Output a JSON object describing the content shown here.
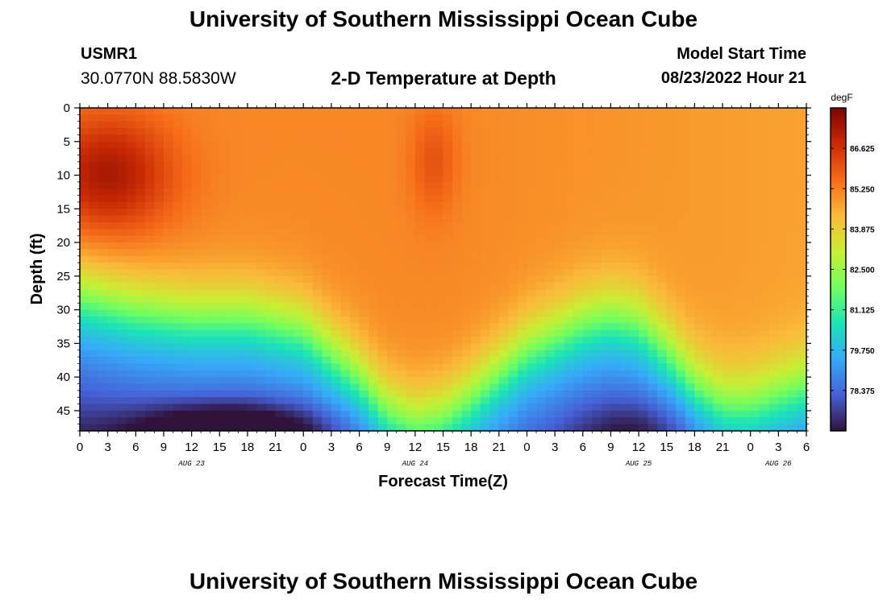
{
  "page": {
    "title_top": "University of Southern Mississippi Ocean Cube",
    "title_bottom": "University of Southern Mississippi Ocean Cube",
    "station_id": "USMR1",
    "station_coords": "30.0770N  88.5830W",
    "chart_title": "2-D Temperature at Depth",
    "model_label": "Model Start Time",
    "model_time": "08/23/2022 Hour 21"
  },
  "colors": {
    "colormap": [
      "#30123b",
      "#4661d6",
      "#36aaf9",
      "#1ae4b6",
      "#72fe5e",
      "#c8ef34",
      "#faba39",
      "#f66b19",
      "#ca2a04",
      "#7a0403"
    ]
  },
  "chart_data": {
    "type": "heatmap",
    "title": "2-D Temperature at Depth",
    "xlabel": "Forecast Time(Z)",
    "ylabel": "Depth (ft)",
    "x_start_hour": 0,
    "x_end_hour": 78,
    "x_tick_step_hours": 3,
    "x_tick_labels": [
      "0",
      "3",
      "6",
      "9",
      "12",
      "15",
      "18",
      "21",
      "0",
      "3",
      "6",
      "9",
      "12",
      "15",
      "18",
      "21",
      "0",
      "3",
      "6",
      "9",
      "12",
      "15",
      "18",
      "21",
      "0",
      "3",
      "6"
    ],
    "date_labels": [
      {
        "label": "AUG 23",
        "hour": 12
      },
      {
        "label": "AUG 24",
        "hour": 36
      },
      {
        "label": "AUG 25",
        "hour": 60
      },
      {
        "label": "AUG 26",
        "hour": 75
      }
    ],
    "ylim": [
      0,
      48
    ],
    "y_ticks": [
      0,
      5,
      10,
      15,
      20,
      25,
      30,
      35,
      40,
      45
    ],
    "colorbar": {
      "unit": "degF",
      "min": 77.0,
      "max": 88.0,
      "tick_values": [
        86.625,
        85.25,
        83.875,
        82.5,
        81.125,
        79.75,
        78.375
      ],
      "tick_labels": [
        "86.625",
        "85.250",
        "83.875",
        "82.500",
        "81.125",
        "79.750",
        "78.375"
      ]
    },
    "transition_depth_ft": [
      {
        "hour": 0,
        "depth": 27
      },
      {
        "hour": 6,
        "depth": 29
      },
      {
        "hour": 12,
        "depth": 30
      },
      {
        "hour": 18,
        "depth": 30
      },
      {
        "hour": 24,
        "depth": 32
      },
      {
        "hour": 30,
        "depth": 39
      },
      {
        "hour": 33,
        "depth": 44
      },
      {
        "hour": 36,
        "depth": 46
      },
      {
        "hour": 39,
        "depth": 45
      },
      {
        "hour": 42,
        "depth": 42
      },
      {
        "hour": 48,
        "depth": 35
      },
      {
        "hour": 54,
        "depth": 31
      },
      {
        "hour": 57,
        "depth": 30
      },
      {
        "hour": 60,
        "depth": 31
      },
      {
        "hour": 63,
        "depth": 35
      },
      {
        "hour": 66,
        "depth": 40
      },
      {
        "hour": 69,
        "depth": 43
      },
      {
        "hour": 72,
        "depth": 43
      },
      {
        "hour": 78,
        "depth": 40
      }
    ],
    "cold_bottom_min_degF": 77.2,
    "cold_bottom_min_hour": 16,
    "surface_max_degF": 87.3,
    "surface_max_hour": 3,
    "surface_max_depth_ft": 10
  }
}
